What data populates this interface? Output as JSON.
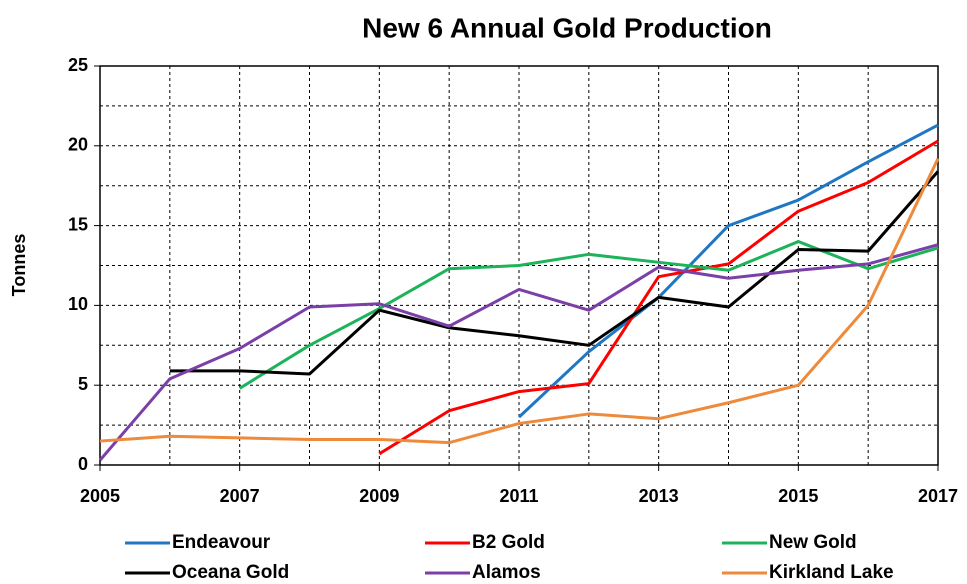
{
  "chart_data": {
    "type": "line",
    "title": "New 6 Annual Gold Production",
    "y_label": "Tonnes",
    "x": [
      2005,
      2006,
      2007,
      2008,
      2009,
      2010,
      2011,
      2012,
      2013,
      2014,
      2015,
      2016,
      2017
    ],
    "series": [
      {
        "name": "Endeavour",
        "color": "#1f77c4",
        "values": [
          null,
          null,
          null,
          null,
          null,
          null,
          3,
          7.1,
          10.5,
          15,
          16.6,
          19,
          21.3
        ]
      },
      {
        "name": "B2 Gold",
        "color": "#ff0000",
        "values": [
          null,
          null,
          null,
          null,
          0.7,
          3.4,
          4.6,
          5.1,
          11.8,
          12.6,
          15.9,
          17.7,
          20.3
        ]
      },
      {
        "name": "New Gold",
        "color": "#1db35a",
        "values": [
          null,
          null,
          4.8,
          7.5,
          9.8,
          12.3,
          12.5,
          13.2,
          12.7,
          12.2,
          14,
          12.3,
          13.6
        ]
      },
      {
        "name": "Oceana Gold",
        "color": "#000000",
        "values": [
          null,
          5.9,
          5.9,
          5.7,
          9.7,
          8.6,
          8.1,
          7.5,
          10.5,
          9.9,
          13.5,
          13.4,
          18.4
        ]
      },
      {
        "name": "Alamos",
        "color": "#7b3fa8",
        "values": [
          0.3,
          5.4,
          7.3,
          9.9,
          10.1,
          8.7,
          11,
          9.7,
          12.4,
          11.7,
          12.2,
          12.6,
          13.8
        ]
      },
      {
        "name": "Kirkland Lake",
        "color": "#ee8a3c",
        "values": [
          1.5,
          1.8,
          1.7,
          1.6,
          1.6,
          1.4,
          2.6,
          3.2,
          2.9,
          3.9,
          5,
          10,
          19.2
        ]
      }
    ],
    "xlim": [
      2005,
      2017
    ],
    "xticks": [
      2005,
      2007,
      2009,
      2011,
      2013,
      2015,
      2017
    ],
    "minor_xticks": [
      2006,
      2008,
      2010,
      2012,
      2014,
      2016
    ],
    "ylim": [
      0,
      25
    ],
    "yticks": [
      0,
      5,
      10,
      15,
      20,
      25
    ],
    "minor_yticks": [
      2.5,
      7.5,
      12.5,
      17.5,
      22.5
    ],
    "grid": true,
    "legend": "bottom"
  }
}
